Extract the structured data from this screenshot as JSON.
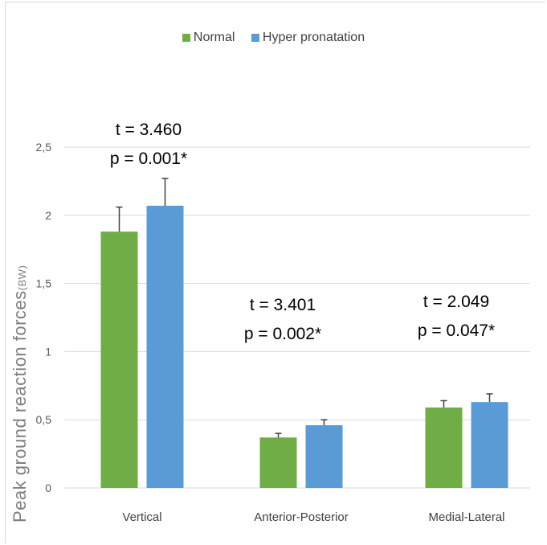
{
  "chart_data": {
    "type": "bar",
    "categories": [
      "Vertical",
      "Anterior-Posterior",
      "Medial-Lateral"
    ],
    "series": [
      {
        "name": "Normal",
        "color": "#70ad47",
        "values": [
          1.88,
          0.37,
          0.59
        ],
        "error": [
          0.18,
          0.03,
          0.05
        ]
      },
      {
        "name": "Hyper pronatation",
        "color": "#5b9bd5",
        "values": [
          2.07,
          0.46,
          0.63
        ],
        "error": [
          0.2,
          0.04,
          0.06
        ]
      }
    ],
    "ylabel": "Peak ground reaction forces",
    "ylabel_unit": "(BW)",
    "ylim": [
      0,
      2.5
    ],
    "yticks": [
      "0",
      "0,5",
      "1",
      "1,5",
      "2",
      "2,5"
    ],
    "ytick_values": [
      0,
      0.5,
      1,
      1.5,
      2,
      2.5
    ],
    "grid": true,
    "legend_position": "top",
    "annotations": [
      {
        "category": "Vertical",
        "t": "t = 3.460",
        "p": "p = 0.001*"
      },
      {
        "category": "Anterior-Posterior",
        "t": "t = 3.401",
        "p": "p = 0.002*"
      },
      {
        "category": "Medial-Lateral",
        "t": "t = 2.049",
        "p": "p = 0.047*"
      }
    ]
  }
}
